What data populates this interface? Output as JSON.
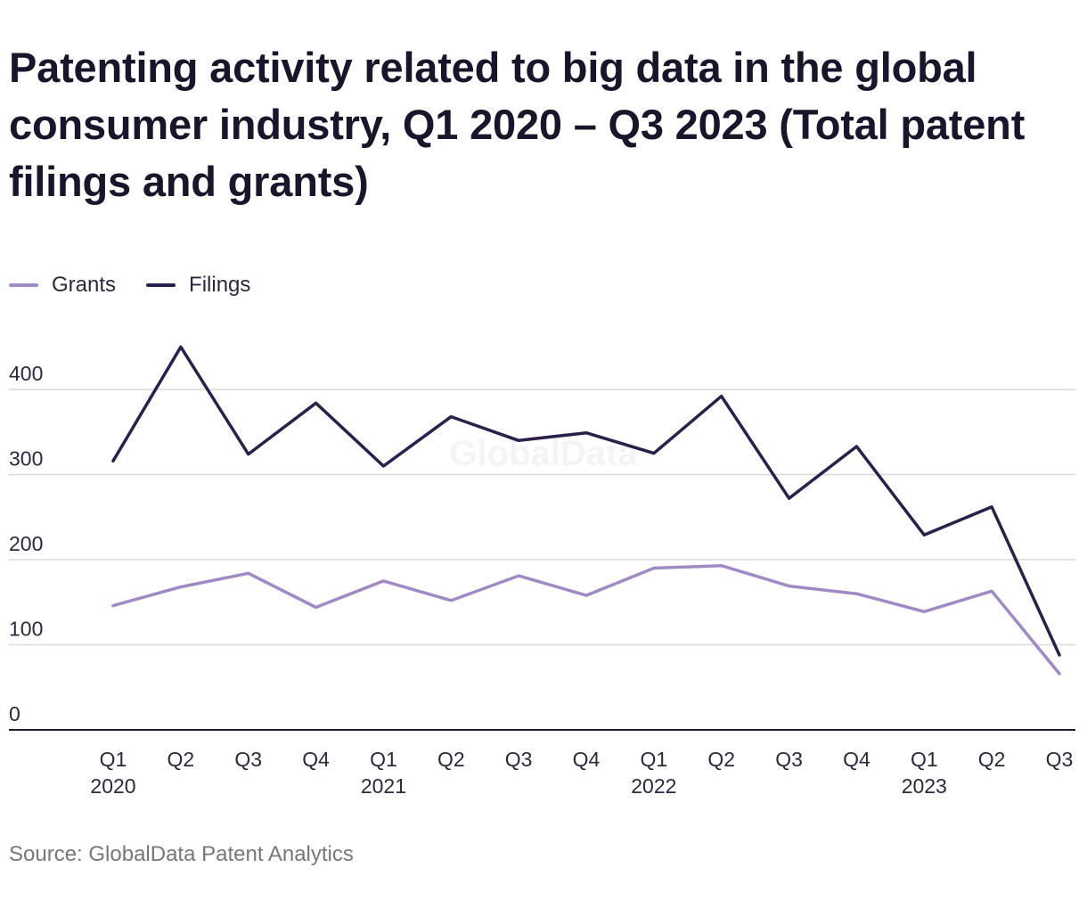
{
  "title": "Patenting activity related to big data in the global consumer industry, Q1 2020 – Q3 2023 (Total patent filings and grants)",
  "source": "Source: GlobalData Patent Analytics",
  "watermark": "GlobalData",
  "legend": [
    {
      "name": "Grants",
      "color": "#a08ac6"
    },
    {
      "name": "Filings",
      "color": "#2b1f4b"
    }
  ],
  "chart_data": {
    "type": "line",
    "title": "Patenting activity related to big data in the global consumer industry, Q1 2020 – Q3 2023 (Total patent filings and grants)",
    "xlabel": "",
    "ylabel": "",
    "ylim": [
      0,
      400
    ],
    "yticks": [
      0,
      100,
      200,
      300,
      400
    ],
    "grid": true,
    "legend_position": "top-left",
    "categories": [
      {
        "quarter": "Q1",
        "year": "2020"
      },
      {
        "quarter": "Q2",
        "year": ""
      },
      {
        "quarter": "Q3",
        "year": ""
      },
      {
        "quarter": "Q4",
        "year": ""
      },
      {
        "quarter": "Q1",
        "year": "2021"
      },
      {
        "quarter": "Q2",
        "year": ""
      },
      {
        "quarter": "Q3",
        "year": ""
      },
      {
        "quarter": "Q4",
        "year": ""
      },
      {
        "quarter": "Q1",
        "year": "2022"
      },
      {
        "quarter": "Q2",
        "year": ""
      },
      {
        "quarter": "Q3",
        "year": ""
      },
      {
        "quarter": "Q4",
        "year": ""
      },
      {
        "quarter": "Q1",
        "year": "2023"
      },
      {
        "quarter": "Q2",
        "year": ""
      },
      {
        "quarter": "Q3",
        "year": ""
      }
    ],
    "series": [
      {
        "name": "Grants",
        "color": "#a08ac6",
        "values": [
          146,
          168,
          184,
          144,
          175,
          152,
          181,
          158,
          190,
          193,
          169,
          160,
          139,
          163,
          66
        ]
      },
      {
        "name": "Filings",
        "color": "#2b1f4b",
        "values": [
          316,
          450,
          324,
          384,
          310,
          368,
          340,
          349,
          325,
          392,
          272,
          333,
          229,
          262,
          88
        ]
      }
    ]
  }
}
